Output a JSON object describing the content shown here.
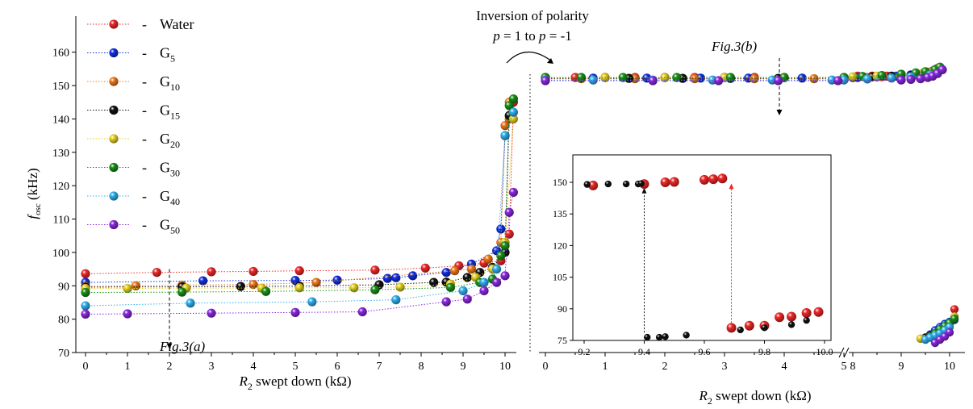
{
  "chart_data": [
    {
      "type": "scatter",
      "panel": "a",
      "xlabel": {
        "italic": "R",
        "sub": "2",
        "rest": " swept down (kΩ)"
      },
      "ylabel": {
        "italic": "f",
        "sub": "osc",
        "rest": " (kHz)"
      },
      "xlim": [
        -0.2,
        10.4
      ],
      "ylim": [
        70,
        165
      ],
      "xticks": [
        "0",
        "1",
        "2",
        "3",
        "4",
        "5",
        "6",
        "7",
        "8",
        "9",
        "10"
      ],
      "yticks": [
        "70",
        "80",
        "90",
        "100",
        "110",
        "120",
        "130",
        "140",
        "150",
        "160"
      ],
      "annotation": "Fig.3(a)",
      "series": [
        {
          "name": "Water",
          "sub": "",
          "color": "#f02828",
          "x": [
            0,
            1.7,
            3,
            4,
            5.1,
            6.9,
            8.1,
            8.9,
            9.5,
            9.9,
            10.1,
            10.2
          ],
          "y": [
            93.6,
            94,
            94.2,
            94.3,
            94.5,
            94.7,
            95.3,
            96,
            96.8,
            97.5,
            105.5,
            145
          ]
        },
        {
          "name": "G",
          "sub": "5",
          "color": "#1030e0",
          "x": [
            0,
            2.8,
            5,
            6,
            7.2,
            7.4,
            7.8,
            8.6,
            9.2,
            9.8,
            9.9,
            10
          ],
          "y": [
            91,
            91.5,
            91.6,
            91.7,
            92.2,
            92.4,
            93,
            94,
            96.5,
            100.5,
            107,
            135
          ]
        },
        {
          "name": "G",
          "sub": "10",
          "color": "#f07818",
          "x": [
            0,
            1.2,
            2.3,
            4,
            5.5,
            8.8,
            9.2,
            9.6,
            9.9,
            10,
            10.1,
            10.1
          ],
          "y": [
            89.8,
            90,
            90.2,
            90.4,
            91,
            94.5,
            95,
            98,
            103,
            138,
            140,
            145
          ]
        },
        {
          "name": "G",
          "sub": "15",
          "color": "#111111",
          "x": [
            0,
            2.3,
            3.7,
            5.1,
            7,
            8.3,
            8.6,
            9.1,
            9.4,
            9.7,
            10,
            10.1
          ],
          "y": [
            89.6,
            89.7,
            89.8,
            89.9,
            90.3,
            91,
            91.1,
            92.5,
            94,
            95.5,
            100,
            141
          ]
        },
        {
          "name": "G",
          "sub": "20",
          "color": "#e6d020",
          "x": [
            0,
            1,
            2.4,
            4.2,
            5.1,
            6.4,
            7.5,
            8.7,
            9.3,
            9.7,
            10,
            10.2
          ],
          "y": [
            89.2,
            89.2,
            89.3,
            89.3,
            89.4,
            89.4,
            89.6,
            90.5,
            92.5,
            95,
            103,
            140
          ]
        },
        {
          "name": "G",
          "sub": "30",
          "color": "#1a9018",
          "x": [
            0,
            2.3,
            4.3,
            6.9,
            8.7,
            9.4,
            9.7,
            9.9,
            10,
            10.1,
            10.2
          ],
          "y": [
            88,
            88.1,
            88.3,
            88.8,
            89.5,
            91,
            92,
            99,
            102,
            144,
            146
          ]
        },
        {
          "name": "G",
          "sub": "40",
          "color": "#30b0f0",
          "x": [
            0,
            2.5,
            5.4,
            7.4,
            9,
            9.5,
            9.8,
            10,
            10.2
          ],
          "y": [
            84,
            84.8,
            85.2,
            85.8,
            88.5,
            91,
            95,
            135,
            142
          ]
        },
        {
          "name": "G",
          "sub": "50",
          "color": "#8a28e0",
          "x": [
            0,
            1,
            3,
            5,
            6.6,
            8.6,
            9.1,
            9.5,
            9.8,
            10,
            10.1,
            10.2
          ],
          "y": [
            81.5,
            81.6,
            81.8,
            82,
            82.2,
            85.2,
            86,
            88.5,
            91,
            93,
            112,
            118
          ]
        }
      ]
    },
    {
      "type": "scatter",
      "panel": "b",
      "xlabel": {
        "italic": "R",
        "sub": "2",
        "rest": " swept down (kΩ)"
      },
      "xticks": [
        "0",
        "1",
        "2",
        "3",
        "4",
        "5",
        "8",
        "9",
        "10"
      ],
      "axis_break": "between 5 and 8",
      "annotation": "Fig.3(b)",
      "series": [
        {
          "name": "Water",
          "x": [
            0,
            0.5,
            1,
            1.5,
            2,
            2.5,
            3,
            3.5,
            4,
            5,
            8.1,
            8.4,
            8.7,
            9,
            9.3,
            9.45,
            9.55,
            9.65,
            9.7,
            9.75
          ],
          "y": [
            148,
            148,
            148,
            148,
            148,
            148,
            148,
            148,
            148,
            148,
            149,
            149,
            149,
            149.5,
            150,
            151,
            152,
            153,
            154,
            155
          ],
          "x2": [
            10,
            10.1
          ],
          "y2": [
            88,
            102
          ]
        },
        {
          "name": "G5",
          "x": [
            0,
            0.8,
            1.7,
            2.6,
            3.4,
            4.3,
            5,
            8.1,
            8.5,
            8.9,
            9.2,
            9.45,
            9.6,
            9.7,
            9.75
          ],
          "y": [
            147.5,
            147.5,
            147.5,
            147.5,
            147.5,
            147.5,
            147.5,
            148,
            148.5,
            149,
            150,
            151,
            152,
            153,
            154
          ],
          "x2": [
            9.5,
            9.6,
            9.7,
            9.8,
            9.9,
            10,
            10.1
          ],
          "y2": [
            75,
            78,
            82,
            85,
            88,
            90,
            92
          ]
        },
        {
          "name": "G10",
          "x": [
            0,
            0.6,
            1.5,
            2.5,
            3.5,
            4.5,
            5,
            8.3,
            8.6,
            9,
            9.3,
            9.5,
            9.6
          ],
          "y": [
            147,
            147,
            147,
            147,
            147,
            147,
            147,
            148,
            148.5,
            149,
            150,
            151,
            152
          ],
          "x2": [
            9.4,
            9.5,
            9.6,
            9.7,
            9.8,
            9.9,
            10,
            10.1
          ],
          "y2": [
            74,
            74.5,
            75,
            77,
            80,
            84,
            88,
            95
          ]
        },
        {
          "name": "G15",
          "x": [
            0,
            1.4,
            2.3,
            3.1,
            3.9,
            5,
            8,
            8.4,
            8.8,
            9.2,
            9.5
          ],
          "y": [
            147.3,
            147.3,
            147.3,
            147.3,
            147.3,
            147.4,
            148,
            148.5,
            149,
            149.5,
            150.5
          ],
          "x2": [
            9.5,
            9.6,
            9.7,
            9.8,
            9.9,
            10
          ],
          "y2": [
            75,
            77,
            79,
            82,
            85,
            88
          ]
        },
        {
          "name": "G20",
          "x": [
            0,
            1,
            2,
            3,
            4,
            5,
            8,
            8.5,
            9,
            9.4,
            9.6
          ],
          "y": [
            147.8,
            147.8,
            147.8,
            147.8,
            147.8,
            147.8,
            148.5,
            149,
            149.5,
            150.5,
            151.5
          ],
          "x2": [
            9.4,
            9.6,
            9.8,
            10,
            10.1
          ],
          "y2": [
            74,
            76,
            80,
            87,
            95
          ]
        },
        {
          "name": "G30",
          "x": [
            0,
            0.6,
            1.3,
            2.2,
            3.1,
            4,
            5,
            8.2,
            8.6,
            9,
            9.3,
            9.5,
            9.7,
            9.8
          ],
          "y": [
            148,
            148,
            148,
            148,
            148,
            148,
            148,
            148.8,
            149.5,
            150.5,
            151.5,
            152.5,
            154,
            156
          ],
          "x2": [
            9.6,
            9.7,
            9.8,
            9.9,
            10,
            10.1
          ],
          "y2": [
            76,
            79,
            83,
            86,
            89,
            93
          ]
        },
        {
          "name": "G40",
          "x": [
            0,
            0.8,
            1.8,
            2.8,
            3.8,
            4.8,
            5,
            8.3,
            8.8,
            9.2,
            9.6
          ],
          "y": [
            146,
            146,
            146,
            146,
            146,
            146,
            146,
            146.8,
            147.5,
            148.5,
            150
          ],
          "x2": [
            9.5,
            9.6,
            9.7,
            9.8,
            9.9,
            10
          ],
          "y2": [
            73,
            75,
            77,
            79,
            82,
            85
          ]
        },
        {
          "name": "G50",
          "x": [
            0,
            1.8,
            2.9,
            3.9,
            4.9,
            9,
            9.2,
            9.4,
            9.55,
            9.65,
            9.75,
            9.85
          ],
          "y": [
            145.5,
            145.5,
            145.5,
            145.5,
            145.5,
            146,
            146.5,
            147,
            148,
            149,
            151,
            154
          ],
          "x2": [
            9.7,
            9.8,
            9.9,
            10
          ],
          "y2": [
            70,
            73,
            76,
            80
          ]
        }
      ]
    },
    {
      "type": "scatter",
      "panel": "inset",
      "xlim": [
        9.15,
        10.02
      ],
      "ylim": [
        70,
        160
      ],
      "xticks": [
        "9.2",
        "9.4",
        "9.6",
        "9.8",
        "10.0"
      ],
      "yticks": [
        "75",
        "90",
        "105",
        "120",
        "135",
        "150"
      ],
      "series": [
        {
          "name": "Water",
          "color": "#f02828",
          "x": [
            9.23,
            9.4,
            9.47,
            9.5,
            9.6,
            9.63,
            9.66,
            9.69,
            9.75,
            9.8,
            9.85,
            9.89,
            9.94,
            9.98
          ],
          "y": [
            148.5,
            149.2,
            150,
            150.2,
            151.2,
            151.5,
            151.8,
            81,
            82,
            82,
            86,
            86.3,
            88,
            88.5
          ]
        },
        {
          "name": "G15",
          "color": "#111111",
          "x": [
            9.21,
            9.28,
            9.34,
            9.38,
            9.39,
            9.41,
            9.45,
            9.47,
            9.54,
            9.72,
            9.8,
            9.89,
            9.94
          ],
          "y": [
            149,
            149.2,
            149.2,
            149.2,
            149.4,
            76.5,
            76.5,
            76.8,
            77.5,
            80,
            81,
            82.5,
            84.5
          ]
        }
      ],
      "transitions": [
        {
          "x": 9.4,
          "from": 76.5,
          "to": 149,
          "color": "#111111"
        },
        {
          "x": 9.69,
          "from": 81,
          "to": 151,
          "color": "#f02828"
        }
      ]
    }
  ],
  "annotation_top": {
    "line1": "Inversion of polarity",
    "p1": "p",
    "eq1": " = 1 to ",
    "p2": "p",
    "eq2": " = -1"
  },
  "legend_dash": "-"
}
